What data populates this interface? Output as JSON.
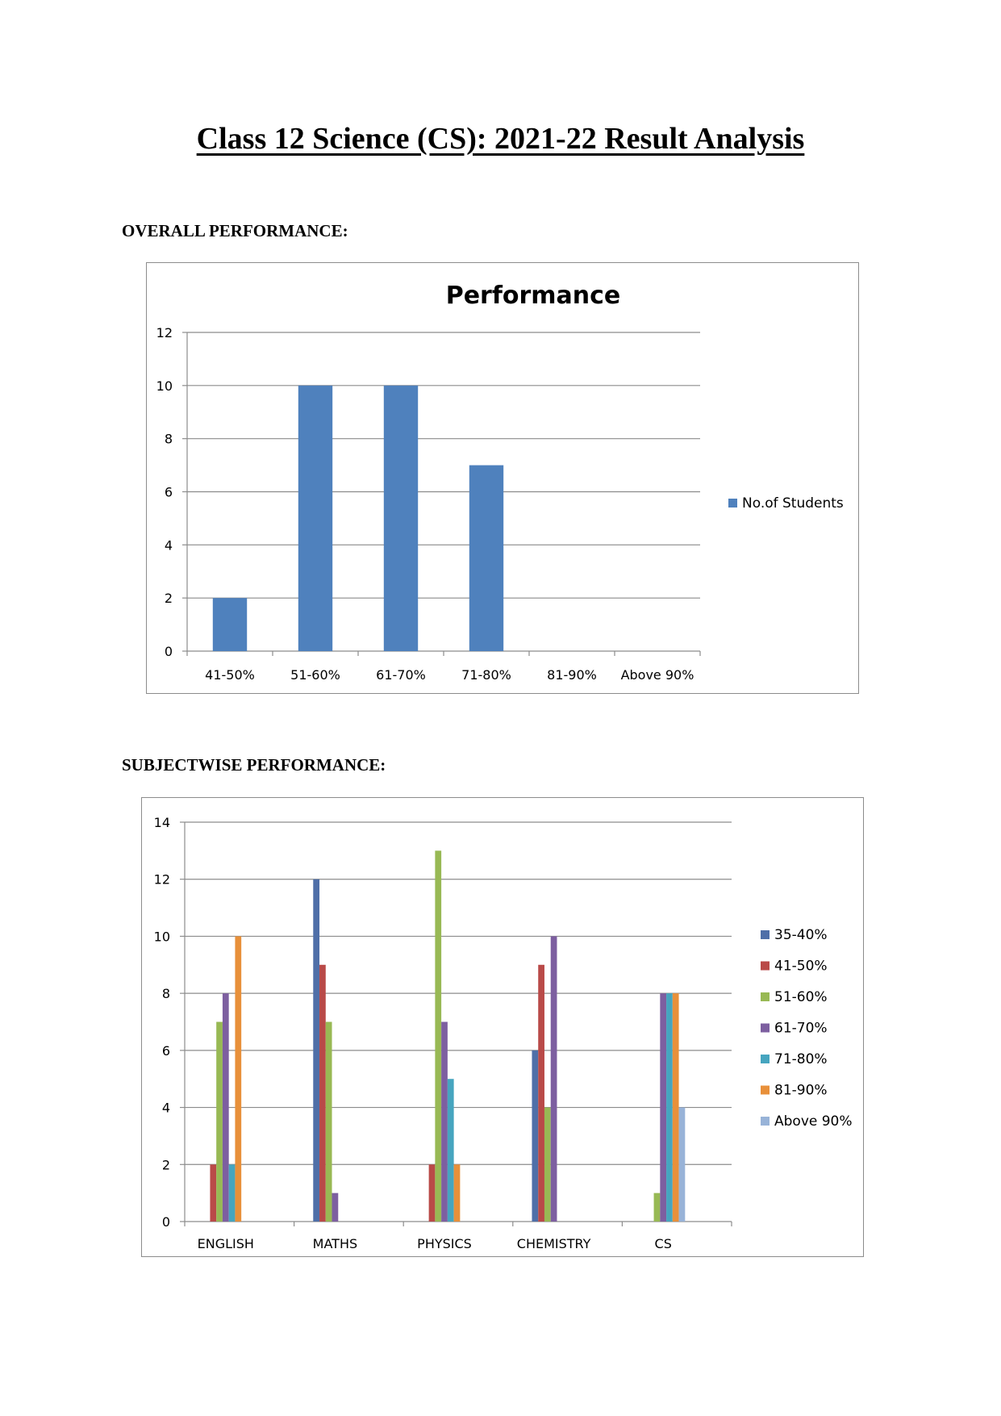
{
  "page": {
    "title": "Class 12 Science (CS): 2021-22 Result Analysis",
    "section_overall": "OVERALL PERFORMANCE:",
    "section_subjectwise": "SUBJECTWISE PERFORMANCE:"
  },
  "chart_data": [
    {
      "type": "bar",
      "title": "Performance",
      "categories": [
        "41-50%",
        "51-60%",
        "61-70%",
        "71-80%",
        "81-90%",
        "Above 90%"
      ],
      "series": [
        {
          "name": "No.of Students",
          "color": "#4f81bd",
          "values": [
            2,
            10,
            10,
            7,
            0,
            0
          ]
        }
      ],
      "ylim": [
        0,
        12
      ],
      "yticks": [
        0,
        2,
        4,
        6,
        8,
        10,
        12
      ],
      "grid": true,
      "legend": "right"
    },
    {
      "type": "bar",
      "title": "",
      "categories": [
        "ENGLISH",
        "MATHS",
        "PHYSICS",
        "CHEMISTRY",
        "CS"
      ],
      "series": [
        {
          "name": "35-40%",
          "color": "#4f6fa8",
          "values": [
            0,
            12,
            0,
            6,
            0
          ]
        },
        {
          "name": "41-50%",
          "color": "#b94a48",
          "values": [
            2,
            9,
            2,
            9,
            0
          ]
        },
        {
          "name": "51-60%",
          "color": "#98b954",
          "values": [
            7,
            7,
            13,
            4,
            1
          ]
        },
        {
          "name": "61-70%",
          "color": "#7d5fa0",
          "values": [
            8,
            1,
            7,
            10,
            8
          ]
        },
        {
          "name": "71-80%",
          "color": "#46a5bf",
          "values": [
            2,
            0,
            5,
            0,
            8
          ]
        },
        {
          "name": "81-90%",
          "color": "#e8903a",
          "values": [
            10,
            0,
            2,
            0,
            8
          ]
        },
        {
          "name": "Above 90%",
          "color": "#98b3d8",
          "values": [
            0,
            0,
            0,
            0,
            4
          ]
        }
      ],
      "ylim": [
        0,
        14
      ],
      "yticks": [
        0,
        2,
        4,
        6,
        8,
        10,
        12,
        14
      ],
      "grid": true,
      "legend": "right"
    }
  ]
}
